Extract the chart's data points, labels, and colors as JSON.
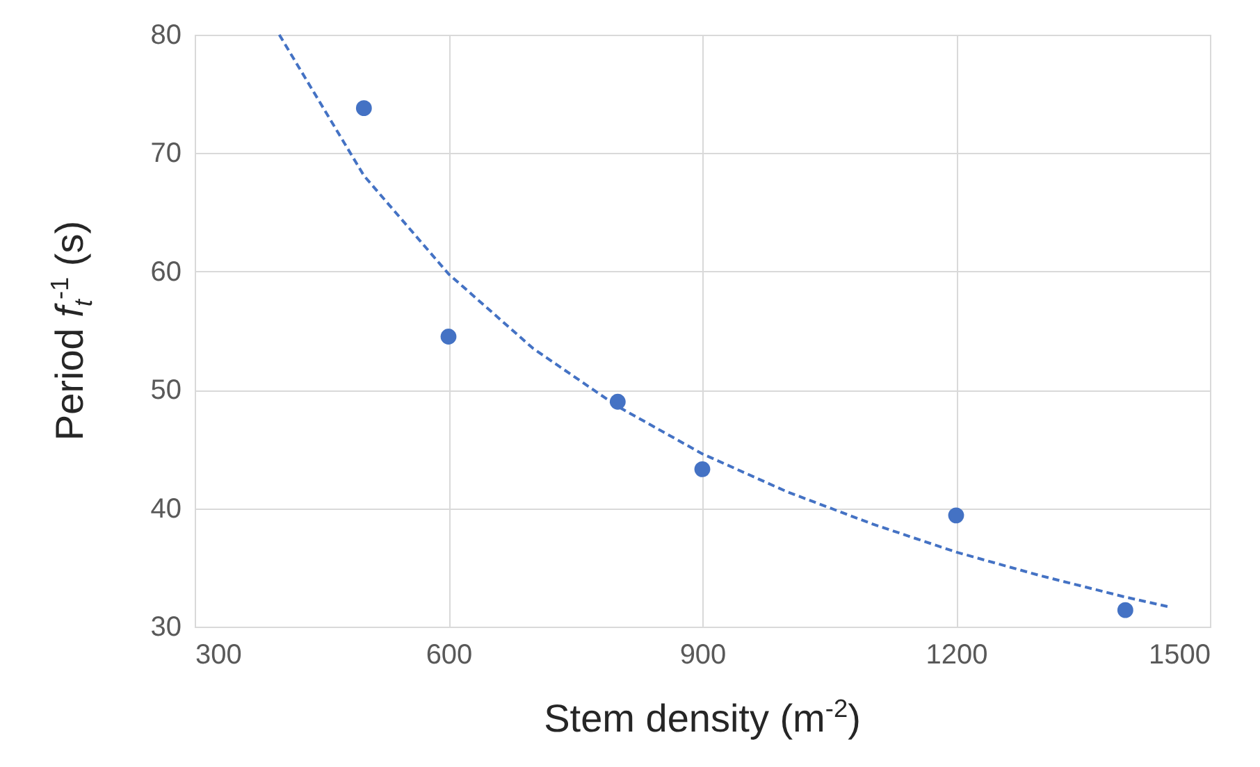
{
  "chart_data": {
    "type": "scatter",
    "xlabel": "Stem density (m$^{-2}$)",
    "ylabel": "Period f$_{t}$$^{-1}$ (s)",
    "xlim": [
      300,
      1500
    ],
    "xticks": [
      300,
      600,
      900,
      1200,
      1500
    ],
    "ylim": [
      30,
      80
    ],
    "yticks": [
      30,
      40,
      50,
      60,
      70,
      80
    ],
    "grid": true,
    "marker": "circle",
    "x": [
      500,
      600,
      800,
      900,
      1200,
      1400
    ],
    "series": [
      {
        "color": "#4472c4",
        "values": [
          73.8,
          54.5,
          49,
          43.3,
          39.4,
          31.4
        ]
      },
      {
        "type": "line",
        "line_style": "dashed",
        "marker": "none",
        "color": "#4472c4",
        "x": [
          400,
          500,
          600,
          700,
          800,
          900,
          1000,
          1100,
          1200,
          1300,
          1400,
          1450
        ],
        "values": [
          80,
          68.1,
          59.8,
          53.5,
          48.6,
          44.6,
          41.4,
          38.7,
          36.3,
          34.3,
          32.5,
          31.7
        ]
      }
    ]
  }
}
